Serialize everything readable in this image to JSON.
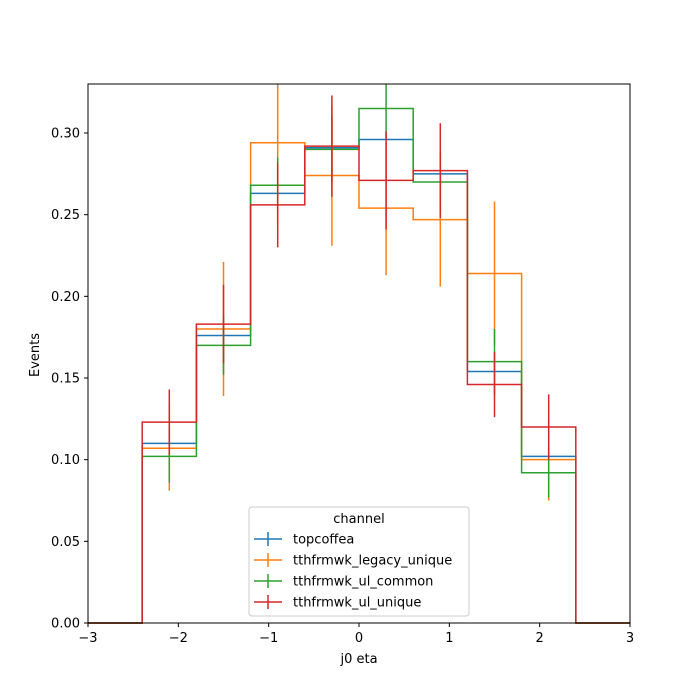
{
  "chart_data": {
    "type": "step-histogram",
    "xlabel": "j0 eta",
    "ylabel": "Events",
    "xlim": [
      -3,
      3
    ],
    "ylim": [
      0,
      0.33
    ],
    "x_ticks": [
      -3,
      -2,
      -1,
      0,
      1,
      2,
      3
    ],
    "x_tick_labels": [
      "−3",
      "−2",
      "−1",
      "0",
      "1",
      "2",
      "3"
    ],
    "y_ticks": [
      0,
      0.05,
      0.1,
      0.15,
      0.2,
      0.25,
      0.3
    ],
    "y_tick_labels": [
      "0.00",
      "0.05",
      "0.10",
      "0.15",
      "0.20",
      "0.25",
      "0.30"
    ],
    "bin_edges": [
      -3.0,
      -2.4,
      -1.8,
      -1.2,
      -0.6,
      0.0,
      0.6,
      1.2,
      1.8,
      2.4,
      3.0
    ],
    "legend": {
      "title": "channel",
      "placement": "lower center"
    },
    "series": [
      {
        "name": "topcoffea",
        "color": "#1f77b4",
        "values": [
          0,
          0.11,
          0.176,
          0.263,
          0.291,
          0.296,
          0.275,
          0.154,
          0.102,
          0
        ],
        "errors": [
          0,
          0,
          0,
          0,
          0,
          0,
          0,
          0,
          0,
          0
        ]
      },
      {
        "name": "tthfrmwk_legacy_unique",
        "color": "#ff7f0e",
        "values": [
          0,
          0.107,
          0.18,
          0.294,
          0.274,
          0.254,
          0.247,
          0.214,
          0.1,
          0
        ],
        "errors": [
          0,
          0.026,
          0.041,
          0.05,
          0.043,
          0.041,
          0.041,
          0.044,
          0.025,
          0
        ]
      },
      {
        "name": "tthfrmwk_ul_common",
        "color": "#2ca02c",
        "values": [
          0,
          0.102,
          0.17,
          0.268,
          0.29,
          0.315,
          0.27,
          0.16,
          0.092,
          0
        ],
        "errors": [
          0,
          0.016,
          0.018,
          0.017,
          0.02,
          0.018,
          0.018,
          0.02,
          0.015,
          0
        ]
      },
      {
        "name": "tthfrmwk_ul_unique",
        "color": "#d62728",
        "values": [
          0,
          0.123,
          0.183,
          0.256,
          0.292,
          0.271,
          0.277,
          0.146,
          0.12,
          0
        ],
        "errors": [
          0,
          0.02,
          0.024,
          0.026,
          0.031,
          0.03,
          0.029,
          0.02,
          0.02,
          0
        ]
      }
    ]
  }
}
